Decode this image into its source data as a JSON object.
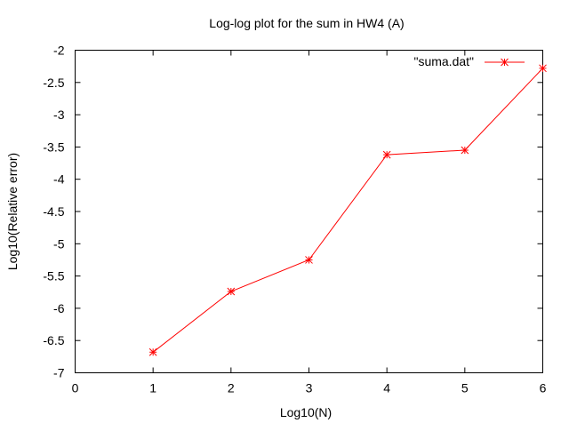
{
  "chart_data": {
    "type": "line",
    "title": "Log-log plot for the sum in HW4 (A)",
    "xlabel": "Log10(N)",
    "ylabel": "Log10(Relative error)",
    "xlim": [
      0,
      6
    ],
    "ylim": [
      -7,
      -2
    ],
    "xticks": [
      0,
      1,
      2,
      3,
      4,
      5,
      6
    ],
    "yticks": [
      -7,
      -6.5,
      -6,
      -5.5,
      -5,
      -4.5,
      -4,
      -3.5,
      -3,
      -2.5,
      -2
    ],
    "xtick_labels": [
      "0",
      "1",
      "2",
      "3",
      "4",
      "5",
      "6"
    ],
    "ytick_labels": [
      "-7",
      "-6.5",
      "-6",
      "-5.5",
      "-5",
      "-4.5",
      "-4",
      "-3.5",
      "-3",
      "-2.5",
      "-2"
    ],
    "grid": false,
    "legend_position": "top-right",
    "series": [
      {
        "name": "\"suma.dat\"",
        "color": "#ff0000",
        "marker": "asterisk",
        "x": [
          1,
          2,
          3,
          4,
          5,
          6
        ],
        "y": [
          -6.68,
          -5.74,
          -5.25,
          -3.62,
          -3.55,
          -2.28
        ]
      }
    ]
  }
}
